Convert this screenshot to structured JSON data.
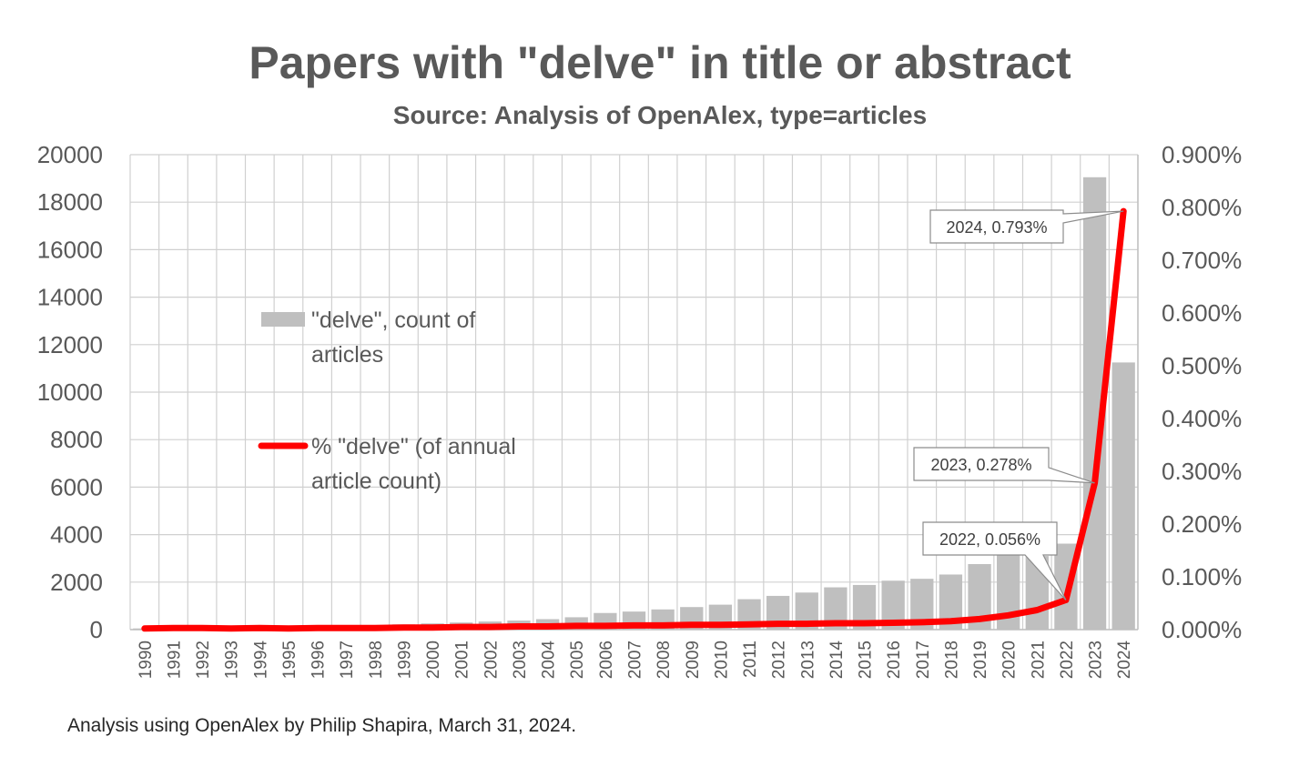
{
  "chart_data": {
    "type": "bar+line",
    "title": "Papers with \"delve\" in title or abstract",
    "subtitle": "Source: Analysis of OpenAlex, type=articles",
    "categories": [
      "1990",
      "1991",
      "1992",
      "1993",
      "1994",
      "1995",
      "1996",
      "1997",
      "1998",
      "1999",
      "2000",
      "2001",
      "2002",
      "2003",
      "2004",
      "2005",
      "2006",
      "2007",
      "2008",
      "2009",
      "2010",
      "2011",
      "2012",
      "2013",
      "2014",
      "2015",
      "2016",
      "2017",
      "2018",
      "2019",
      "2020",
      "2021",
      "2022",
      "2023",
      "2024"
    ],
    "series": [
      {
        "name": "\"delve\", count of articles",
        "type": "bar",
        "axis": "left",
        "color": "#bfbfbf",
        "values": [
          50,
          80,
          90,
          100,
          110,
          120,
          140,
          160,
          180,
          220,
          260,
          300,
          340,
          380,
          440,
          520,
          700,
          760,
          850,
          950,
          1050,
          1280,
          1420,
          1560,
          1780,
          1880,
          2060,
          2140,
          2320,
          2760,
          3200,
          3100,
          3620,
          19050,
          11250
        ]
      },
      {
        "name": "% \"delve\" (of annual article count)",
        "type": "line",
        "axis": "right",
        "color": "#ff0000",
        "values": [
          0.002,
          0.003,
          0.003,
          0.002,
          0.003,
          0.002,
          0.003,
          0.003,
          0.003,
          0.004,
          0.004,
          0.005,
          0.005,
          0.006,
          0.006,
          0.007,
          0.007,
          0.008,
          0.008,
          0.009,
          0.009,
          0.01,
          0.011,
          0.011,
          0.012,
          0.012,
          0.013,
          0.014,
          0.016,
          0.02,
          0.027,
          0.037,
          0.056,
          0.278,
          0.793
        ]
      }
    ],
    "y_left": {
      "min": 0,
      "max": 20000,
      "ticks": [
        "0",
        "2000",
        "4000",
        "6000",
        "8000",
        "10000",
        "12000",
        "14000",
        "16000",
        "18000",
        "20000"
      ]
    },
    "y_right": {
      "min": 0,
      "max": 0.9,
      "ticks": [
        "0.000%",
        "0.100%",
        "0.200%",
        "0.300%",
        "0.400%",
        "0.500%",
        "0.600%",
        "0.700%",
        "0.800%",
        "0.900%"
      ]
    },
    "grid": true,
    "legend": {
      "placement": "inside-left",
      "bar_label_lines": [
        "\"delve\", count of",
        "articles"
      ],
      "line_label_lines": [
        "% \"delve\" (of annual",
        "article count)"
      ]
    },
    "annotations": [
      {
        "year": "2022",
        "value": 0.056,
        "text": "2022, 0.056%"
      },
      {
        "year": "2023",
        "value": 0.278,
        "text": "2023, 0.278%"
      },
      {
        "year": "2024",
        "value": 0.793,
        "text": "2024, 0.793%"
      }
    ]
  },
  "footnote": "Analysis using OpenAlex by Philip Shapira, March 31, 2024."
}
